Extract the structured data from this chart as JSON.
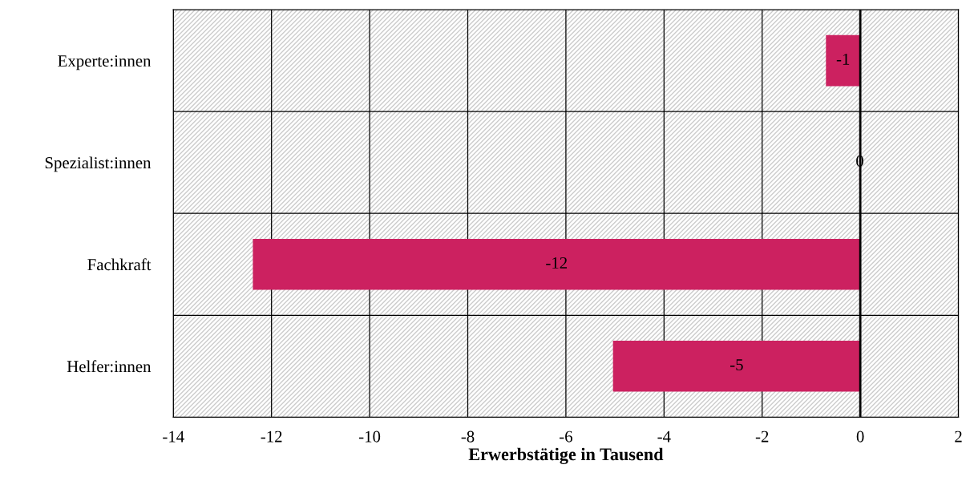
{
  "chart_data": {
    "type": "bar",
    "orientation": "horizontal",
    "xlabel": "Erwerbstätige in Tausend",
    "categories": [
      "Experte:innen",
      "Spezialist:innen",
      "Fachkraft",
      "Helfer:innen"
    ],
    "values": [
      -0.7,
      -0.02,
      -12.38,
      -5.04
    ],
    "value_labels": [
      "-1",
      "0",
      "-12",
      "-5"
    ],
    "color": "#cc2160",
    "xlim": [
      -14,
      2
    ],
    "xticks": [
      -14,
      -12,
      -10,
      -8,
      -6,
      -4,
      -2,
      0,
      2
    ],
    "grid": true,
    "legend": false
  }
}
